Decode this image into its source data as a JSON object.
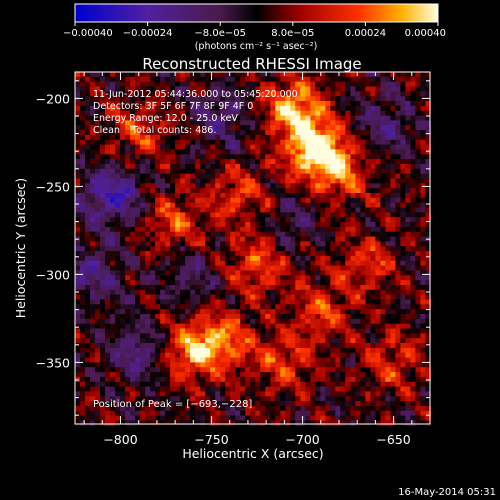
{
  "chart_data": {
    "type": "heatmap",
    "title": "Reconstructed RHESSI Image",
    "xlabel": "Heliocentric X (arcsec)",
    "ylabel": "Heliocentric Y (arcsec)",
    "xlim": [
      -825,
      -630
    ],
    "ylim": [
      -385,
      -185
    ],
    "xticks": [
      -800,
      -750,
      -700,
      -650
    ],
    "yticks": [
      -200,
      -250,
      -300,
      -350
    ],
    "xtick_labels": [
      "−800",
      "−750",
      "−700",
      "−650"
    ],
    "ytick_labels": [
      "−200",
      "−250",
      "−300",
      "−350"
    ],
    "colorbar": {
      "range": [
        -0.0004,
        0.0004
      ],
      "ticks": [
        -0.0004,
        -0.00024,
        -8e-05,
        8e-05,
        0.00024,
        0.0004
      ],
      "tick_labels": [
        "−0.00040",
        "−0.00024",
        "−8.0e−05",
        "8.0e−05",
        "0.00024",
        "0.00040"
      ],
      "unit": "(photons cm⁻² s⁻¹ asec⁻²)"
    },
    "annotations": [
      "11-Jun-2012 05:44:36.000 to 05:45:20.000",
      "Detectors: 3F 5F 6F 7F 8F 9F 4F 0",
      "Energy Range: 12.0 - 25.0 keV",
      "Clean    Total counts: 486."
    ],
    "peak": {
      "label": "Position of Peak = [−693,−228]",
      "x": -693,
      "y": -228
    },
    "grid": false,
    "hotspots": [
      {
        "x": -693,
        "y": -228,
        "v": 1.0
      },
      {
        "x": -705,
        "y": -205,
        "v": 0.75
      },
      {
        "x": -680,
        "y": -242,
        "v": 0.55
      },
      {
        "x": -745,
        "y": -338,
        "v": 0.65
      },
      {
        "x": -763,
        "y": -345,
        "v": 0.55
      },
      {
        "x": -725,
        "y": -295,
        "v": 0.5
      },
      {
        "x": -770,
        "y": -270,
        "v": 0.45
      },
      {
        "x": -790,
        "y": -218,
        "v": 0.4
      },
      {
        "x": -665,
        "y": -295,
        "v": 0.4
      },
      {
        "x": -650,
        "y": -350,
        "v": 0.4
      },
      {
        "x": -710,
        "y": -350,
        "v": 0.45
      },
      {
        "x": -735,
        "y": -255,
        "v": 0.4
      },
      {
        "x": -690,
        "y": -320,
        "v": 0.45
      }
    ],
    "coldspots": [
      {
        "x": -805,
        "y": -255,
        "v": -0.7
      },
      {
        "x": -790,
        "y": -345,
        "v": -0.5
      },
      {
        "x": -815,
        "y": -300,
        "v": -0.45
      },
      {
        "x": -745,
        "y": -210,
        "v": -0.4
      },
      {
        "x": -655,
        "y": -215,
        "v": -0.4
      },
      {
        "x": -760,
        "y": -300,
        "v": -0.3
      },
      {
        "x": -705,
        "y": -270,
        "v": -0.25
      }
    ]
  },
  "footer": {
    "timestamp": "16-May-2014 05:31"
  }
}
